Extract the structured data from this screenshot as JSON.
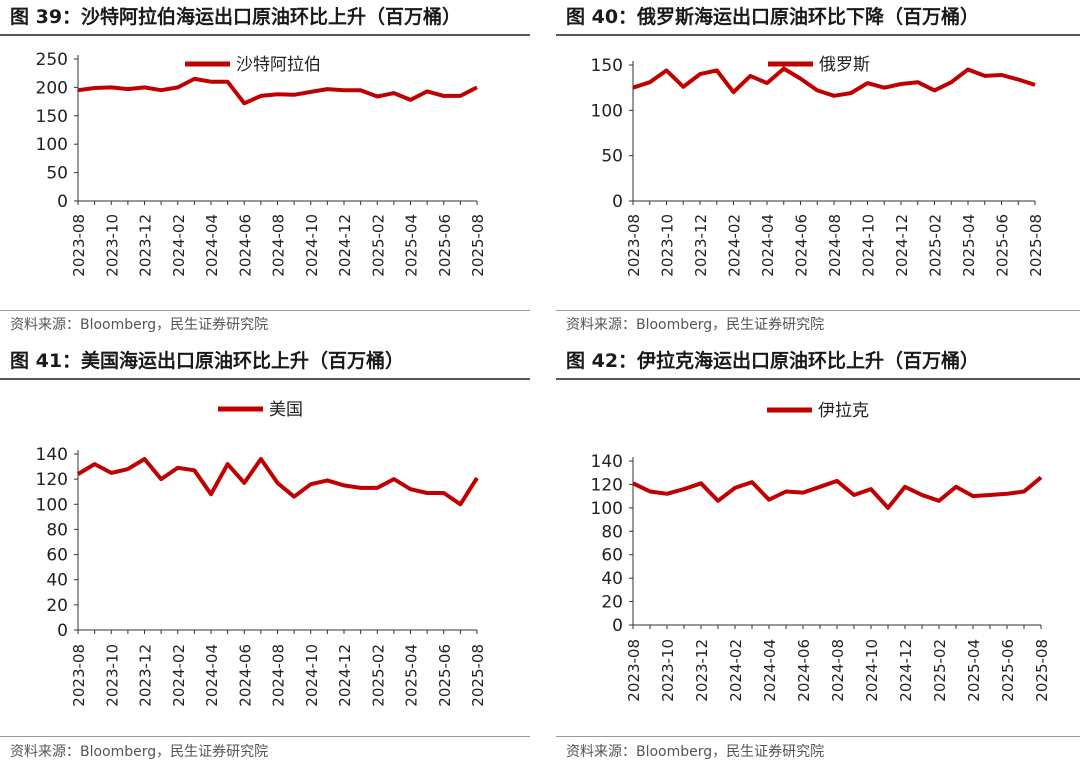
{
  "colors": {
    "line": "#c00000",
    "axis": "#333333"
  },
  "chart_data": [
    {
      "type": "line",
      "title": "图 39：沙特阿拉伯海运出口原油环比上升（百万桶）",
      "source": "资料来源：Bloomberg，民生证券研究院",
      "series": [
        {
          "name": "沙特阿拉伯",
          "values": [
            195,
            199,
            200,
            197,
            200,
            195,
            200,
            215,
            210,
            210,
            172,
            185,
            188,
            187,
            192,
            197,
            195,
            195,
            184,
            190,
            178,
            193,
            185,
            185,
            200
          ]
        }
      ],
      "x_tick_labels": [
        "2023-08",
        "2023-10",
        "2023-12",
        "2024-02",
        "2024-04",
        "2024-06",
        "2024-08",
        "2024-10",
        "2024-12",
        "2025-02",
        "2025-04",
        "2025-06",
        "2025-08"
      ],
      "y_ticks": [
        0,
        50,
        100,
        150,
        200,
        250
      ],
      "ylim": [
        0,
        250
      ],
      "legend": "top-center"
    },
    {
      "type": "line",
      "title": "图 40：俄罗斯海运出口原油环比下降（百万桶）",
      "source": "资料来源：Bloomberg，民生证券研究院",
      "series": [
        {
          "name": "俄罗斯",
          "values": [
            125,
            131,
            144,
            126,
            140,
            144,
            120,
            138,
            130,
            146,
            135,
            122,
            116,
            119,
            130,
            125,
            129,
            131,
            122,
            131,
            145,
            138,
            139,
            134,
            128
          ]
        }
      ],
      "x_tick_labels": [
        "2023-08",
        "2023-10",
        "2023-12",
        "2024-02",
        "2024-04",
        "2024-06",
        "2024-08",
        "2024-10",
        "2024-12",
        "2025-02",
        "2025-04",
        "2025-06",
        "2025-08"
      ],
      "y_ticks": [
        0,
        50,
        100,
        150
      ],
      "ylim": [
        0,
        150
      ],
      "legend": "top-center"
    },
    {
      "type": "line",
      "title": "图 41：美国海运出口原油环比上升（百万桶）",
      "source": "资料来源：Bloomberg，民生证券研究院",
      "series": [
        {
          "name": "美国",
          "values": [
            124,
            132,
            125,
            128,
            136,
            120,
            129,
            127,
            108,
            132,
            117,
            136,
            117,
            106,
            116,
            119,
            115,
            113,
            113,
            120,
            112,
            109,
            109,
            100,
            121
          ]
        }
      ],
      "x_tick_labels": [
        "2023-08",
        "2023-10",
        "2023-12",
        "2024-02",
        "2024-04",
        "2024-06",
        "2024-08",
        "2024-10",
        "2024-12",
        "2025-02",
        "2025-04",
        "2025-06",
        "2025-08"
      ],
      "y_ticks": [
        0,
        20,
        40,
        60,
        80,
        100,
        120,
        140
      ],
      "ylim": [
        0,
        140
      ],
      "legend": "top-center"
    },
    {
      "type": "line",
      "title": "图 42：伊拉克海运出口原油环比上升（百万桶）",
      "source": "资料来源：Bloomberg，民生证券研究院",
      "series": [
        {
          "name": "伊拉克",
          "values": [
            121,
            114,
            112,
            116,
            121,
            106,
            117,
            122,
            107,
            114,
            113,
            118,
            123,
            111,
            116,
            100,
            118,
            111,
            106,
            118,
            110,
            111,
            112,
            114,
            126
          ]
        }
      ],
      "x_tick_labels": [
        "2023-08",
        "2023-10",
        "2023-12",
        "2024-02",
        "2024-04",
        "2024-06",
        "2024-08",
        "2024-10",
        "2024-12",
        "2025-02",
        "2025-04",
        "2025-06",
        "2025-08"
      ],
      "y_ticks": [
        0,
        20,
        40,
        60,
        80,
        100,
        120,
        140
      ],
      "ylim": [
        0,
        140
      ],
      "legend": "top-center"
    }
  ]
}
